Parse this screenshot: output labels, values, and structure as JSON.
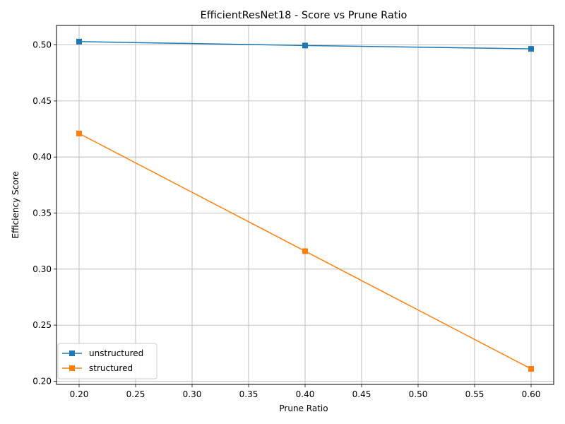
{
  "chart_data": {
    "type": "line",
    "title": "EfficientResNet18 - Score vs Prune Ratio",
    "xlabel": "Prune Ratio",
    "ylabel": "Efficiency Score",
    "x": [
      0.2,
      0.4,
      0.6
    ],
    "series": [
      {
        "name": "unstructured",
        "values": [
          0.503,
          0.4995,
          0.4965
        ],
        "color": "#1f77b4",
        "marker": "square"
      },
      {
        "name": "structured",
        "values": [
          0.421,
          0.316,
          0.211
        ],
        "color": "#ff7f0e",
        "marker": "square"
      }
    ],
    "xlim": [
      0.18,
      0.62
    ],
    "ylim": [
      0.1971,
      0.5174
    ],
    "xticks": [
      "0.20",
      "0.25",
      "0.30",
      "0.35",
      "0.40",
      "0.45",
      "0.50",
      "0.55",
      "0.60"
    ],
    "yticks": [
      "0.20",
      "0.25",
      "0.30",
      "0.35",
      "0.40",
      "0.45",
      "0.50"
    ],
    "grid": true,
    "legend_position": "lower-left"
  }
}
